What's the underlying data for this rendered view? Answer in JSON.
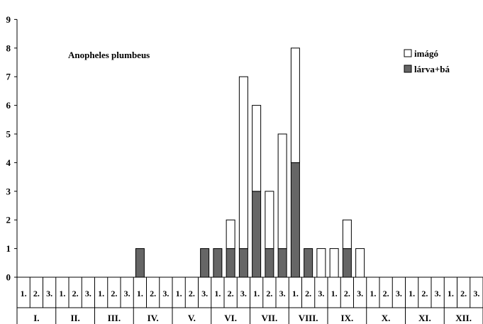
{
  "chart_data": {
    "type": "bar",
    "stacked": true,
    "title": "Anopheles plumbeus",
    "ylim": [
      0,
      9
    ],
    "yticks": [
      "0",
      "1",
      "2",
      "3",
      "4",
      "5",
      "6",
      "7",
      "8",
      "9"
    ],
    "decade_labels": [
      "1.",
      "2.",
      "3."
    ],
    "months": [
      "I.",
      "II.",
      "III.",
      "IV.",
      "V.",
      "VI.",
      "VII.",
      "VIII.",
      "IX.",
      "X.",
      "XI.",
      "XII."
    ],
    "series": [
      {
        "name": "lárva+bá",
        "color": "#666666",
        "values": [
          0,
          0,
          0,
          0,
          0,
          0,
          0,
          0,
          0,
          1,
          0,
          0,
          0,
          0,
          1,
          1,
          1,
          1,
          3,
          1,
          1,
          4,
          1,
          0,
          0,
          1,
          0,
          0,
          0,
          0,
          0,
          0,
          0,
          0,
          0,
          0
        ]
      },
      {
        "name": "imágó",
        "color": "#ffffff",
        "values": [
          0,
          0,
          0,
          0,
          0,
          0,
          0,
          0,
          0,
          0,
          0,
          0,
          0,
          0,
          0,
          0,
          1,
          6,
          3,
          2,
          4,
          4,
          0,
          1,
          1,
          1,
          1,
          0,
          0,
          0,
          0,
          0,
          0,
          0,
          0,
          0
        ]
      }
    ],
    "legend_position": "top-right",
    "grid": false
  }
}
